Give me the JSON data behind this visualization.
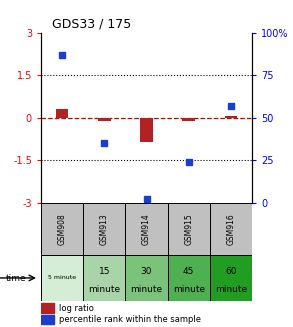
{
  "title": "GDS33 / 175",
  "samples": [
    "GSM908",
    "GSM913",
    "GSM914",
    "GSM915",
    "GSM916"
  ],
  "time_labels_top": [
    "5 minute",
    "15",
    "30",
    "45",
    "60"
  ],
  "time_labels_bot": [
    "",
    "minute",
    "minute",
    "minute",
    "minute"
  ],
  "log_ratio": [
    0.3,
    -0.1,
    -0.85,
    -0.1,
    0.05
  ],
  "percentile_rank": [
    87,
    35,
    2,
    24,
    57
  ],
  "bar_color": "#b22222",
  "dot_color": "#1a3ecf",
  "dashed_line_color": "#cc0000",
  "ylim_left": [
    -3,
    3
  ],
  "ylim_right": [
    0,
    100
  ],
  "yticks_left": [
    -3,
    -1.5,
    0,
    1.5,
    3
  ],
  "yticks_right": [
    0,
    25,
    50,
    75,
    100
  ],
  "gsm_bg_color": "#c0c0c0",
  "time_colors": [
    "#d5ecd5",
    "#a8d4a8",
    "#7bc27b",
    "#4eb04e",
    "#219e21"
  ],
  "legend_log_ratio_color": "#b22222",
  "legend_percentile_color": "#1a3ecf",
  "background_color": "#ffffff"
}
